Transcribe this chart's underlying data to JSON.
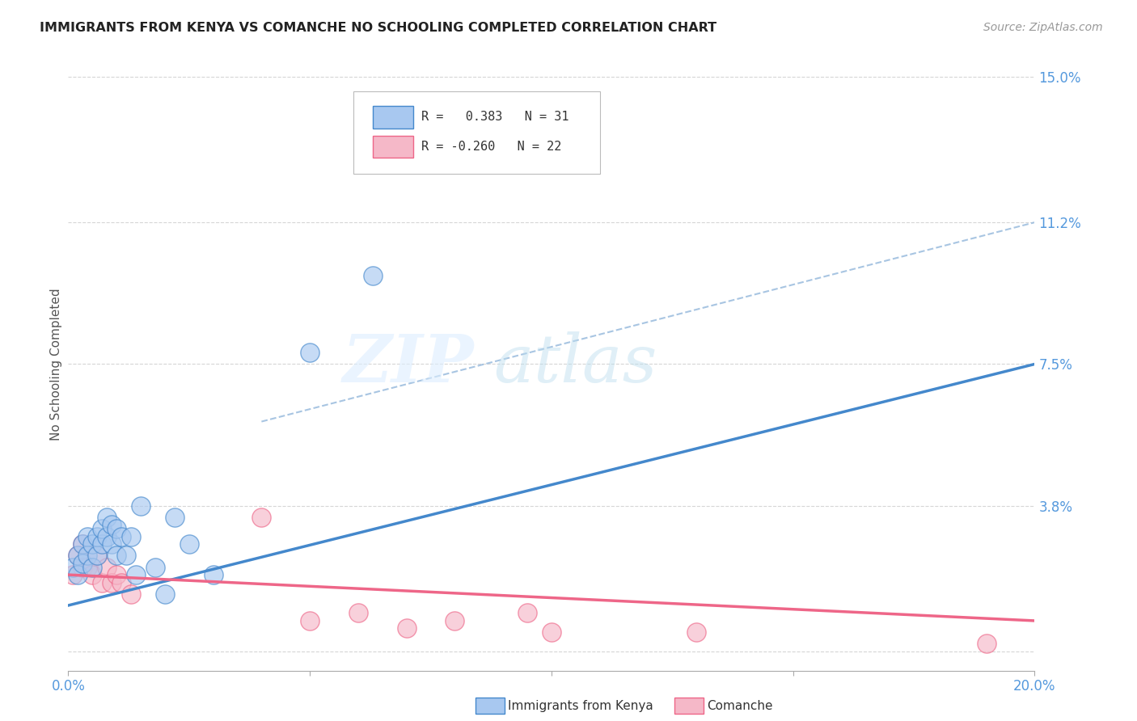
{
  "title": "IMMIGRANTS FROM KENYA VS COMANCHE NO SCHOOLING COMPLETED CORRELATION CHART",
  "source": "Source: ZipAtlas.com",
  "ylabel": "No Schooling Completed",
  "xlim": [
    0.0,
    0.2
  ],
  "ylim": [
    -0.005,
    0.155
  ],
  "yticks": [
    0.0,
    0.038,
    0.075,
    0.112,
    0.15
  ],
  "ytick_labels": [
    "",
    "3.8%",
    "7.5%",
    "11.2%",
    "15.0%"
  ],
  "xticks": [
    0.0,
    0.05,
    0.1,
    0.15,
    0.2
  ],
  "xtick_labels": [
    "0.0%",
    "",
    "",
    "",
    "20.0%"
  ],
  "blue_color": "#a8c8f0",
  "pink_color": "#f5b8c8",
  "blue_line_color": "#4488cc",
  "pink_line_color": "#ee6688",
  "dashed_line_color": "#99bbdd",
  "kenya_points_x": [
    0.001,
    0.002,
    0.002,
    0.003,
    0.003,
    0.004,
    0.004,
    0.005,
    0.005,
    0.006,
    0.006,
    0.007,
    0.007,
    0.008,
    0.008,
    0.009,
    0.009,
    0.01,
    0.01,
    0.011,
    0.012,
    0.013,
    0.014,
    0.015,
    0.018,
    0.02,
    0.022,
    0.025,
    0.03,
    0.05,
    0.063
  ],
  "kenya_points_y": [
    0.022,
    0.025,
    0.02,
    0.028,
    0.023,
    0.03,
    0.025,
    0.022,
    0.028,
    0.025,
    0.03,
    0.028,
    0.032,
    0.03,
    0.035,
    0.028,
    0.033,
    0.032,
    0.025,
    0.03,
    0.025,
    0.03,
    0.02,
    0.038,
    0.022,
    0.015,
    0.035,
    0.028,
    0.02,
    0.078,
    0.098
  ],
  "comanche_points_x": [
    0.001,
    0.002,
    0.003,
    0.003,
    0.004,
    0.005,
    0.006,
    0.007,
    0.008,
    0.009,
    0.01,
    0.011,
    0.013,
    0.04,
    0.05,
    0.06,
    0.07,
    0.08,
    0.095,
    0.1,
    0.13,
    0.19
  ],
  "comanche_points_y": [
    0.02,
    0.025,
    0.022,
    0.028,
    0.022,
    0.02,
    0.025,
    0.018,
    0.022,
    0.018,
    0.02,
    0.018,
    0.015,
    0.035,
    0.008,
    0.01,
    0.006,
    0.008,
    0.01,
    0.005,
    0.005,
    0.002
  ],
  "blue_line_x0": 0.0,
  "blue_line_y0": 0.012,
  "blue_line_x1": 0.2,
  "blue_line_y1": 0.075,
  "pink_line_x0": 0.0,
  "pink_line_y0": 0.02,
  "pink_line_x1": 0.2,
  "pink_line_y1": 0.008,
  "dash_line_x0": 0.04,
  "dash_line_y0": 0.06,
  "dash_line_x1": 0.2,
  "dash_line_y1": 0.112
}
